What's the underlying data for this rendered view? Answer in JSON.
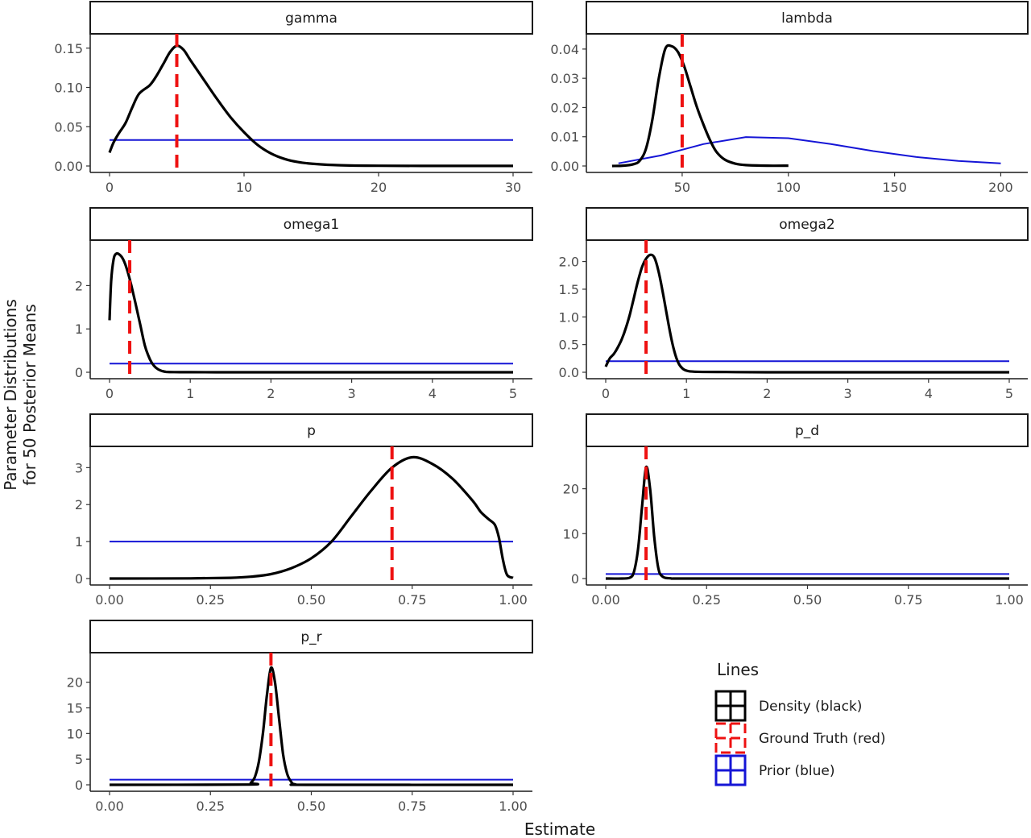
{
  "colors": {
    "density": "#000000",
    "truth": "#ee1111",
    "prior": "#1515d6"
  },
  "x_axis_title": "Estimate",
  "y_axis_title_line1": "Parameter Distributions",
  "y_axis_title_line2": "for 50 Posterior Means",
  "legend": {
    "title": "Lines",
    "position": "bottom-right",
    "items": [
      {
        "label": "Density (black)",
        "color": "#000000",
        "style": "solid"
      },
      {
        "label": "Ground Truth (red)",
        "color": "#ee1111",
        "style": "dashed"
      },
      {
        "label": "Prior (blue)",
        "color": "#1515d6",
        "style": "solid"
      }
    ]
  },
  "chart_data": [
    {
      "type": "line",
      "title": "gamma",
      "xlim": [
        0,
        30
      ],
      "ylim": [
        0,
        0.16
      ],
      "xticks": [
        0,
        10,
        20,
        30
      ],
      "xtick_labels": [
        "0",
        "10",
        "20",
        "30"
      ],
      "yticks": [
        0,
        0.05,
        0.1,
        0.15
      ],
      "ytick_labels": [
        "0.00",
        "0.05",
        "0.10",
        "0.15"
      ],
      "ground_truth": 5,
      "prior": {
        "x": [
          0,
          30
        ],
        "y": [
          0.033,
          0.033
        ]
      },
      "density": {
        "x": [
          0,
          0.3,
          0.7,
          1.2,
          1.7,
          2.2,
          3,
          3.5,
          4,
          4.5,
          5,
          5.5,
          6,
          7,
          8,
          9,
          10,
          11,
          12,
          13,
          14,
          15,
          17,
          20,
          25,
          30
        ],
        "y": [
          0.017,
          0.03,
          0.042,
          0.055,
          0.075,
          0.092,
          0.103,
          0.115,
          0.13,
          0.145,
          0.153,
          0.148,
          0.135,
          0.11,
          0.085,
          0.062,
          0.043,
          0.027,
          0.016,
          0.009,
          0.005,
          0.003,
          0.001,
          0.0003,
          0.0001,
          0.0001
        ]
      }
    },
    {
      "type": "line",
      "title": "lambda",
      "xlim": [
        14,
        204
      ],
      "ylim": [
        0,
        0.043
      ],
      "xticks": [
        50,
        100,
        150,
        200
      ],
      "xtick_labels": [
        "50",
        "100",
        "150",
        "200"
      ],
      "yticks": [
        0,
        0.01,
        0.02,
        0.03,
        0.04
      ],
      "ytick_labels": [
        "0.00",
        "0.01",
        "0.02",
        "0.03",
        "0.04"
      ],
      "ground_truth": 50,
      "prior": {
        "x": [
          20,
          40,
          60,
          80,
          100,
          120,
          140,
          160,
          180,
          200
        ],
        "y": [
          0.0009,
          0.0036,
          0.0075,
          0.0099,
          0.0095,
          0.0075,
          0.0051,
          0.0031,
          0.0017,
          0.0009
        ]
      },
      "density": {
        "x": [
          17,
          22,
          27,
          30,
          33,
          36,
          39,
          42,
          45,
          48,
          51,
          54,
          57,
          60,
          63,
          66,
          70,
          75,
          80,
          90,
          100
        ],
        "y": [
          0.0,
          0.0001,
          0.0006,
          0.0018,
          0.006,
          0.016,
          0.03,
          0.04,
          0.041,
          0.039,
          0.034,
          0.027,
          0.02,
          0.0142,
          0.009,
          0.005,
          0.0022,
          0.0008,
          0.0003,
          0.0001,
          0.0001
        ]
      }
    },
    {
      "type": "line",
      "title": "omega1",
      "xlim": [
        0,
        5
      ],
      "ylim": [
        0,
        2.9
      ],
      "xticks": [
        0,
        1,
        2,
        3,
        4,
        5
      ],
      "xtick_labels": [
        "0",
        "1",
        "2",
        "3",
        "4",
        "5"
      ],
      "yticks": [
        0,
        1,
        2
      ],
      "ytick_labels": [
        "0",
        "1",
        "2"
      ],
      "ground_truth": 0.25,
      "prior": {
        "x": [
          0,
          5
        ],
        "y": [
          0.2,
          0.2
        ]
      },
      "density": {
        "x": [
          0,
          0.02,
          0.05,
          0.08,
          0.12,
          0.17,
          0.22,
          0.27,
          0.32,
          0.38,
          0.44,
          0.5,
          0.55,
          0.6,
          0.65,
          0.7,
          0.8,
          1,
          1.5,
          2,
          3,
          4,
          5
        ],
        "y": [
          1.2,
          2.1,
          2.6,
          2.73,
          2.72,
          2.6,
          2.35,
          2.0,
          1.6,
          1.1,
          0.6,
          0.3,
          0.15,
          0.07,
          0.03,
          0.01,
          0.003,
          0.001,
          0.0,
          0.0,
          0.0,
          0.0,
          0.0
        ]
      }
    },
    {
      "type": "line",
      "title": "omega2",
      "xlim": [
        0,
        5
      ],
      "ylim": [
        0,
        2.27
      ],
      "xticks": [
        0,
        1,
        2,
        3,
        4,
        5
      ],
      "xtick_labels": [
        "0",
        "1",
        "2",
        "3",
        "4",
        "5"
      ],
      "yticks": [
        0,
        0.5,
        1,
        1.5,
        2
      ],
      "ytick_labels": [
        "0.0",
        "0.5",
        "1.0",
        "1.5",
        "2.0"
      ],
      "ground_truth": 0.5,
      "prior": {
        "x": [
          0,
          5
        ],
        "y": [
          0.2,
          0.2
        ]
      },
      "density": {
        "x": [
          0,
          0.05,
          0.1,
          0.15,
          0.2,
          0.25,
          0.3,
          0.35,
          0.4,
          0.45,
          0.5,
          0.55,
          0.6,
          0.65,
          0.7,
          0.75,
          0.8,
          0.85,
          0.9,
          0.95,
          1,
          1.1,
          1.5,
          2,
          3,
          4,
          5
        ],
        "y": [
          0.1,
          0.25,
          0.33,
          0.45,
          0.6,
          0.8,
          1.05,
          1.35,
          1.65,
          1.9,
          2.05,
          2.12,
          2.08,
          1.85,
          1.5,
          1.1,
          0.7,
          0.38,
          0.17,
          0.07,
          0.03,
          0.01,
          0.004,
          0.0,
          0.0,
          0.0,
          0.0
        ]
      }
    },
    {
      "type": "line",
      "title": "p",
      "xlim": [
        0,
        1
      ],
      "ylim": [
        0,
        3.4
      ],
      "xticks": [
        0,
        0.25,
        0.5,
        0.75,
        1
      ],
      "xtick_labels": [
        "0.00",
        "0.25",
        "0.50",
        "0.75",
        "1.00"
      ],
      "yticks": [
        0,
        1,
        2,
        3
      ],
      "ytick_labels": [
        "0",
        "1",
        "2",
        "3"
      ],
      "ground_truth": 0.7,
      "prior": {
        "x": [
          0,
          1
        ],
        "y": [
          1,
          1
        ]
      },
      "density": {
        "x": [
          0,
          0.2,
          0.3,
          0.35,
          0.4,
          0.45,
          0.5,
          0.55,
          0.6,
          0.65,
          0.7,
          0.75,
          0.8,
          0.85,
          0.9,
          0.92,
          0.94,
          0.955,
          0.965,
          0.975,
          0.985,
          1
        ],
        "y": [
          0.0,
          0.005,
          0.02,
          0.05,
          0.12,
          0.28,
          0.55,
          1.0,
          1.7,
          2.4,
          3.0,
          3.28,
          3.1,
          2.7,
          2.1,
          1.8,
          1.6,
          1.45,
          1.1,
          0.5,
          0.1,
          0.02
        ]
      }
    },
    {
      "type": "line",
      "title": "p_d",
      "xlim": [
        0,
        1
      ],
      "ylim": [
        0,
        28
      ],
      "xticks": [
        0,
        0.25,
        0.5,
        0.75,
        1
      ],
      "xtick_labels": [
        "0.00",
        "0.25",
        "0.50",
        "0.75",
        "1.00"
      ],
      "yticks": [
        0,
        10,
        20
      ],
      "ytick_labels": [
        "0",
        "10",
        "20"
      ],
      "ground_truth": 0.1,
      "prior": {
        "x": [
          0,
          1
        ],
        "y": [
          1,
          1
        ]
      },
      "density": {
        "x": [
          0,
          0.04,
          0.06,
          0.07,
          0.08,
          0.09,
          0.1,
          0.11,
          0.12,
          0.13,
          0.14,
          0.16,
          0.2,
          0.5,
          1
        ],
        "y": [
          0.0,
          0.0,
          0.2,
          1.5,
          6.5,
          16.0,
          24.8,
          20.0,
          9.5,
          2.5,
          0.5,
          0.05,
          0.0,
          0.0,
          0.0
        ]
      }
    },
    {
      "type": "line",
      "title": "p_r",
      "xlim": [
        0,
        1
      ],
      "ylim": [
        0,
        24.5
      ],
      "xticks": [
        0,
        0.25,
        0.5,
        0.75,
        1
      ],
      "xtick_labels": [
        "0.00",
        "0.25",
        "0.50",
        "0.75",
        "1.00"
      ],
      "yticks": [
        0,
        5,
        10,
        15,
        20
      ],
      "ytick_labels": [
        "0",
        "5",
        "10",
        "15",
        "20"
      ],
      "ground_truth": 0.4,
      "prior": {
        "x": [
          0,
          1
        ],
        "y": [
          1,
          1
        ]
      },
      "density": {
        "x": [
          0,
          0.34,
          0.35,
          0.36,
          0.37,
          0.38,
          0.39,
          0.4,
          0.41,
          0.42,
          0.43,
          0.44,
          0.45,
          0.46,
          0.5,
          1
        ],
        "y": [
          0.0,
          0.05,
          0.4,
          1.5,
          4.5,
          10.0,
          17.5,
          22.8,
          20.0,
          13.0,
          6.0,
          2.2,
          0.6,
          0.1,
          0.0,
          0.0
        ]
      }
    }
  ]
}
